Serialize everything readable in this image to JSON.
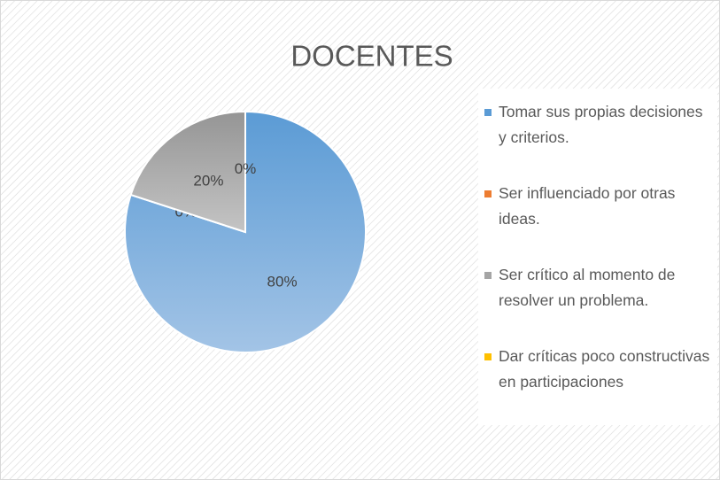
{
  "chart_data": {
    "type": "pie",
    "title": "DOCENTES",
    "categories": [
      "Tomar sus propias decisiones y criterios.",
      "Ser influenciado por otras ideas.",
      "Ser crítico al momento de resolver un problema.",
      "Dar críticas poco constructivas en participaciones"
    ],
    "values": [
      80,
      0,
      20,
      0
    ],
    "value_labels": [
      "80%",
      "0%",
      "20%",
      "0%"
    ],
    "colors": [
      "#5b9bd5",
      "#ed7d31",
      "#a5a5a5",
      "#ffc000"
    ],
    "legend": "right"
  }
}
